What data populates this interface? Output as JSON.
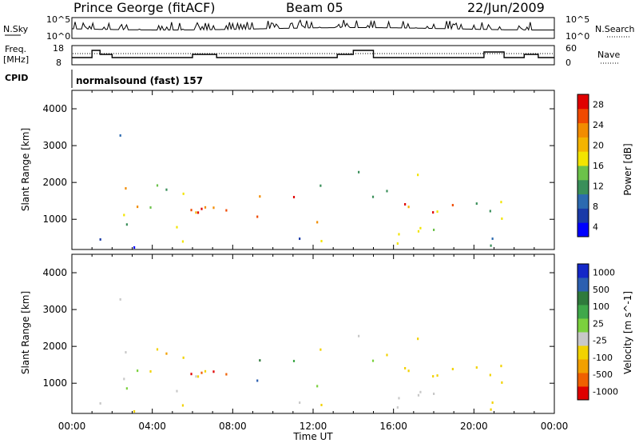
{
  "header": {
    "station": "Prince George (fitACF)",
    "beam": "Beam 05",
    "date": "22/Jun/2009"
  },
  "strip_labels": {
    "nsky": "N.Sky",
    "nsky_ticks": [
      "10^5",
      "10^0"
    ],
    "nsearch": "N.Search",
    "nsearch_ticks": [
      "10^5",
      "10^0"
    ],
    "freq_line1": "Freq.",
    "freq_line2": "[MHz]",
    "freq_ticks": [
      "18",
      "8"
    ],
    "nave": "Nave",
    "nave_ticks": [
      "60",
      "0"
    ],
    "cpid": "CPID",
    "cpid_value": "normalsound (fast) 157"
  },
  "colors": {
    "power": [
      "#0000ff",
      "#1a3aa8",
      "#2c6ab0",
      "#3a8f5a",
      "#6cc24a",
      "#f2e400",
      "#f4b400",
      "#f28c00",
      "#f04a00",
      "#e00000"
    ],
    "velocity": [
      "#1428c8",
      "#2c5fb0",
      "#2f7a3c",
      "#3fa84a",
      "#7bd13e",
      "#c8c8c8",
      "#f2d200",
      "#f2a000",
      "#f06000",
      "#e00000"
    ],
    "ground_scatter": "#c0c0c0"
  },
  "chart_data": [
    {
      "type": "heatmap",
      "name": "power",
      "ylabel": "Slant Range [km]",
      "ylim": [
        180,
        4500
      ],
      "yticks": [
        "1000",
        "2000",
        "3000",
        "4000"
      ],
      "xticks": [
        "00:00",
        "04:00",
        "08:00",
        "12:00",
        "16:00",
        "20:00",
        "00:00"
      ],
      "colorbar_label": "Power [dB]",
      "colorbar_ticks": [
        "4",
        "8",
        "12",
        "16",
        "20",
        "24",
        "28"
      ],
      "colorbar_range": [
        0,
        30
      ]
    },
    {
      "type": "heatmap",
      "name": "velocity",
      "ylabel": "Slant Range [km]",
      "ylim": [
        180,
        4500
      ],
      "yticks": [
        "1000",
        "2000",
        "3000",
        "4000"
      ],
      "xticks": [
        "00:00",
        "04:00",
        "08:00",
        "12:00",
        "16:00",
        "20:00",
        "00:00"
      ],
      "xlabel": "Time UT",
      "colorbar_label": "Velocity [m s^-1]",
      "colorbar_ticks": [
        "1000",
        "500",
        "100",
        "25",
        "-25",
        "-100",
        "-500",
        "-1000"
      ]
    }
  ]
}
